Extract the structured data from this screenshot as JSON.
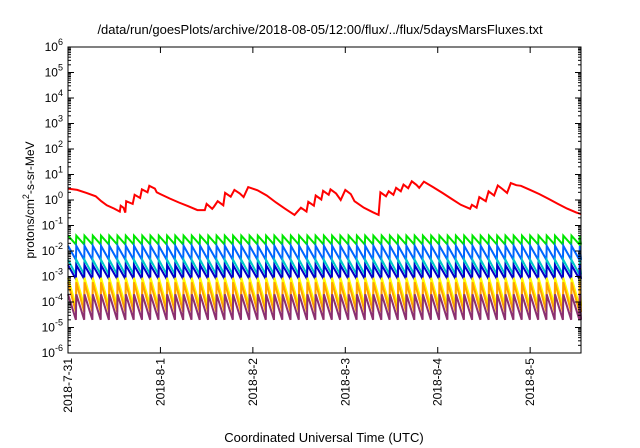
{
  "chart_data": {
    "type": "line",
    "title": "/data/run/goesPlots/archive/2018-08-05/12:00/flux/../flux/5daysMarsFluxes.txt",
    "xlabel": "Coordinated Universal Time (UTC)",
    "ylabel": {
      "base": "protons/cm",
      "sup": "2",
      "rest": "-s-sr-MeV"
    },
    "yscale": "log",
    "ylim": [
      1e-06,
      1000000.0
    ],
    "y_ticks": [
      {
        "exp": "-6"
      },
      {
        "exp": "-5"
      },
      {
        "exp": "-4"
      },
      {
        "exp": "-3"
      },
      {
        "exp": "-2"
      },
      {
        "exp": "-1"
      },
      {
        "exp": "0"
      },
      {
        "exp": "1"
      },
      {
        "exp": "2"
      },
      {
        "exp": "3"
      },
      {
        "exp": "4"
      },
      {
        "exp": "5"
      },
      {
        "exp": "6"
      }
    ],
    "xlim": [
      0,
      5.55
    ],
    "x_ticks": [
      {
        "value": 0,
        "label": "2018-7-31"
      },
      {
        "value": 1,
        "label": "2018-8-1"
      },
      {
        "value": 2,
        "label": "2018-8-2"
      },
      {
        "value": 3,
        "label": "2018-8-3"
      },
      {
        "value": 4,
        "label": "2018-8-4"
      },
      {
        "value": 5,
        "label": "2018-8-5"
      }
    ],
    "grid": false,
    "series": [
      {
        "color": "#ff0000",
        "mode": "points",
        "points": [
          [
            0.0,
            2.8
          ],
          [
            0.1,
            2.5
          ],
          [
            0.2,
            1.9
          ],
          [
            0.3,
            1.4
          ],
          [
            0.36,
            0.9
          ],
          [
            0.42,
            0.62
          ],
          [
            0.5,
            0.46
          ],
          [
            0.56,
            0.35
          ],
          [
            0.57,
            0.6
          ],
          [
            0.6,
            0.5
          ],
          [
            0.62,
            0.32
          ],
          [
            0.63,
            0.9
          ],
          [
            0.7,
            0.7
          ],
          [
            0.72,
            1.6
          ],
          [
            0.78,
            1.2
          ],
          [
            0.8,
            2.6
          ],
          [
            0.86,
            2.0
          ],
          [
            0.88,
            3.6
          ],
          [
            0.94,
            2.8
          ],
          [
            0.96,
            2.0
          ],
          [
            1.0,
            1.7
          ],
          [
            1.1,
            1.15
          ],
          [
            1.2,
            0.8
          ],
          [
            1.3,
            0.57
          ],
          [
            1.4,
            0.4
          ],
          [
            1.48,
            0.4
          ],
          [
            1.5,
            0.7
          ],
          [
            1.56,
            0.45
          ],
          [
            1.58,
            0.55
          ],
          [
            1.62,
            0.9
          ],
          [
            1.68,
            0.62
          ],
          [
            1.7,
            1.9
          ],
          [
            1.76,
            1.35
          ],
          [
            1.8,
            2.5
          ],
          [
            1.86,
            1.8
          ],
          [
            1.9,
            1.3
          ],
          [
            1.95,
            3.2
          ],
          [
            2.05,
            2.4
          ],
          [
            2.15,
            1.5
          ],
          [
            2.25,
            0.8
          ],
          [
            2.35,
            0.45
          ],
          [
            2.45,
            0.26
          ],
          [
            2.52,
            0.5
          ],
          [
            2.58,
            0.35
          ],
          [
            2.6,
            0.85
          ],
          [
            2.66,
            0.6
          ],
          [
            2.68,
            1.5
          ],
          [
            2.74,
            1.05
          ],
          [
            2.76,
            2.3
          ],
          [
            2.82,
            1.6
          ],
          [
            2.84,
            2.6
          ],
          [
            2.9,
            1.8
          ],
          [
            2.95,
            1.0
          ],
          [
            3.0,
            2.5
          ],
          [
            3.06,
            1.7
          ],
          [
            3.1,
            0.9
          ],
          [
            3.2,
            0.5
          ],
          [
            3.3,
            0.33
          ],
          [
            3.36,
            0.26
          ],
          [
            3.38,
            2.0
          ],
          [
            3.44,
            1.4
          ],
          [
            3.47,
            2.2
          ],
          [
            3.52,
            1.6
          ],
          [
            3.55,
            3.0
          ],
          [
            3.6,
            2.2
          ],
          [
            3.63,
            4.0
          ],
          [
            3.68,
            2.9
          ],
          [
            3.72,
            5.4
          ],
          [
            3.77,
            3.9
          ],
          [
            3.8,
            3.0
          ],
          [
            3.85,
            5.2
          ],
          [
            3.95,
            3.2
          ],
          [
            4.05,
            1.9
          ],
          [
            4.15,
            1.1
          ],
          [
            4.25,
            0.65
          ],
          [
            4.35,
            0.45
          ],
          [
            4.37,
            0.65
          ],
          [
            4.42,
            0.5
          ],
          [
            4.45,
            1.3
          ],
          [
            4.52,
            0.9
          ],
          [
            4.55,
            2.2
          ],
          [
            4.61,
            1.5
          ],
          [
            4.65,
            3.7
          ],
          [
            4.7,
            2.7
          ],
          [
            4.75,
            1.9
          ],
          [
            4.79,
            4.6
          ],
          [
            4.85,
            3.8
          ],
          [
            4.9,
            3.6
          ],
          [
            5.0,
            2.5
          ],
          [
            5.1,
            1.7
          ],
          [
            5.2,
            1.1
          ],
          [
            5.3,
            0.7
          ],
          [
            5.4,
            0.46
          ],
          [
            5.5,
            0.32
          ],
          [
            5.55,
            0.28
          ]
        ]
      },
      {
        "color": "#00e600",
        "mode": "sawtooth",
        "peak": 0.04,
        "trough": 0.018,
        "period": 0.0893
      },
      {
        "color": "#0064ff",
        "mode": "sawtooth",
        "peak": 0.016,
        "trough": 0.0045,
        "period": 0.0893
      },
      {
        "color": "#00c8c8",
        "mode": "sawtooth",
        "peak": 0.0045,
        "trough": 0.0012,
        "period": 0.0893
      },
      {
        "color": "#0000c8",
        "mode": "sawtooth",
        "peak": 0.0028,
        "trough": 0.0008,
        "period": 0.0893
      },
      {
        "color": "#ffff00",
        "mode": "sawtooth",
        "peak": 0.0009,
        "trough": 7e-05,
        "period": 0.0893
      },
      {
        "color": "#ffa000",
        "mode": "sawtooth",
        "peak": 0.0006,
        "trough": 4e-05,
        "period": 0.0893
      },
      {
        "color": "#8c3070",
        "mode": "sawtooth",
        "peak": 0.0002,
        "trough": 2e-05,
        "period": 0.0893
      }
    ]
  }
}
